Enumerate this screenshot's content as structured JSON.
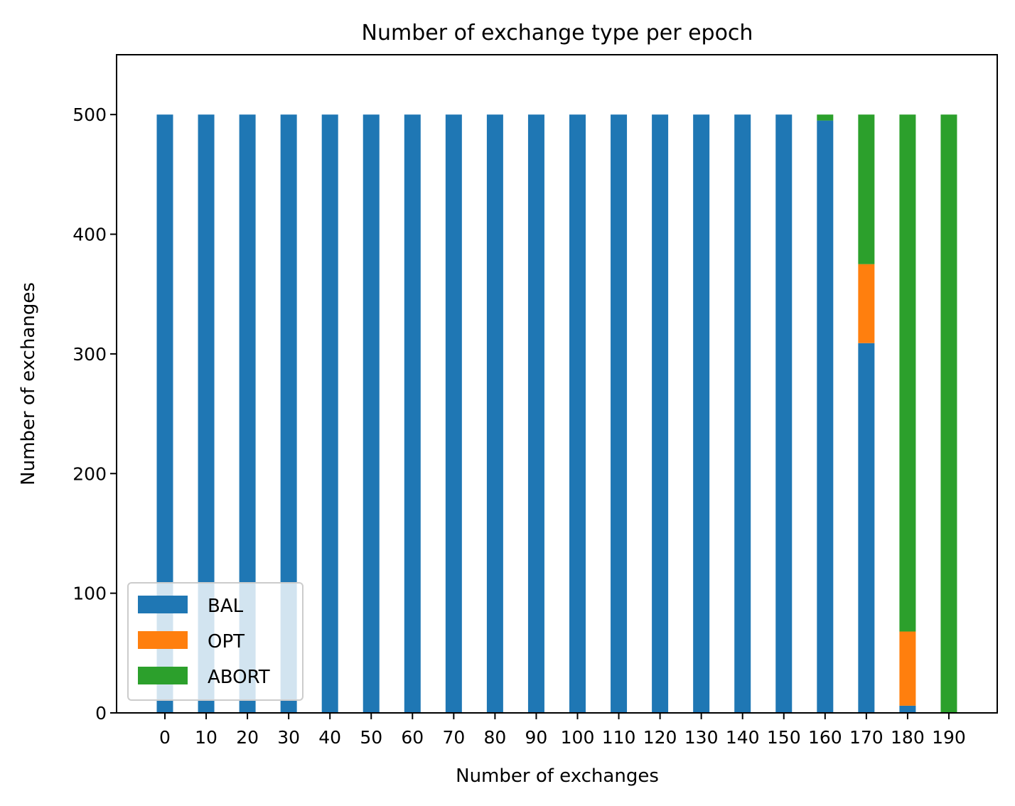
{
  "chart_data": {
    "type": "bar",
    "stacked": true,
    "title": "Number of exchange type per epoch",
    "xlabel": "Number of exchanges",
    "ylabel": "Number of exchanges",
    "categories": [
      "0",
      "10",
      "20",
      "30",
      "40",
      "50",
      "60",
      "70",
      "80",
      "90",
      "100",
      "110",
      "120",
      "130",
      "140",
      "150",
      "160",
      "170",
      "180",
      "190"
    ],
    "series": [
      {
        "name": "BAL",
        "color": "#1f77b4",
        "values": [
          500,
          500,
          500,
          500,
          500,
          500,
          500,
          500,
          500,
          500,
          500,
          500,
          500,
          500,
          500,
          500,
          495,
          309,
          6,
          0
        ]
      },
      {
        "name": "OPT",
        "color": "#ff7f0e",
        "values": [
          0,
          0,
          0,
          0,
          0,
          0,
          0,
          0,
          0,
          0,
          0,
          0,
          0,
          0,
          0,
          0,
          0,
          66,
          62,
          0
        ]
      },
      {
        "name": "ABORT",
        "color": "#2ca02c",
        "values": [
          0,
          0,
          0,
          0,
          0,
          0,
          0,
          0,
          0,
          0,
          0,
          0,
          0,
          0,
          0,
          0,
          5,
          125,
          432,
          500
        ]
      }
    ],
    "ylim": [
      0,
      550
    ],
    "yticks": [
      0,
      100,
      200,
      300,
      400,
      500
    ],
    "grid": false,
    "legend_position": "lower-left"
  }
}
